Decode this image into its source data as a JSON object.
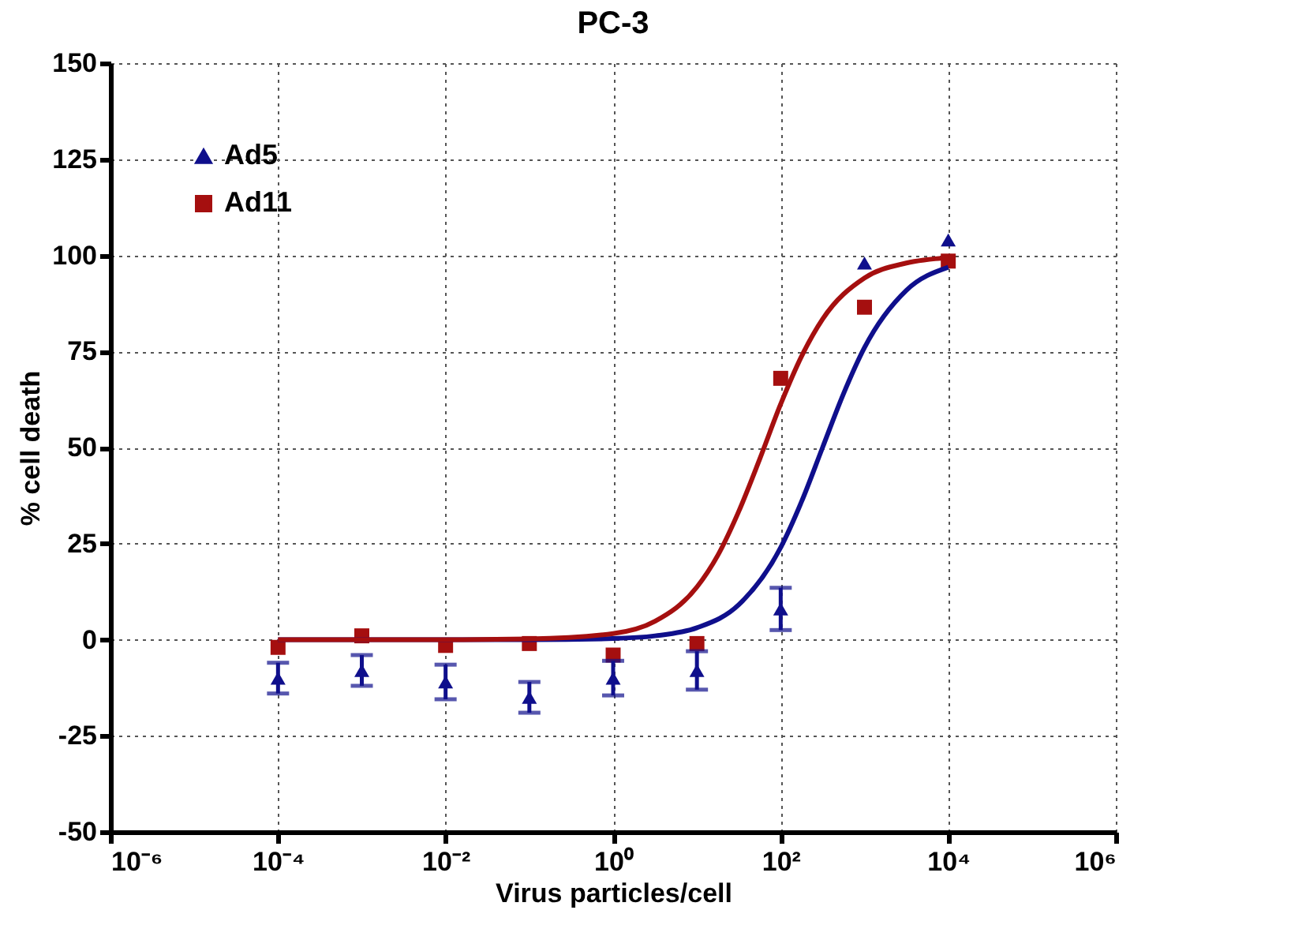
{
  "chart_data": {
    "type": "scatter",
    "title": "PC-3",
    "xlabel": "Virus particles/cell",
    "ylabel": "% cell death",
    "log": "x",
    "grid": true,
    "legend": "top left",
    "xlim": [
      1e-06,
      1000000.0
    ],
    "xticks": [
      {
        "value": 1e-06,
        "label": "10⁻⁶"
      },
      {
        "value": 0.0001,
        "label": "10⁻⁴"
      },
      {
        "value": 0.01,
        "label": "10⁻²"
      },
      {
        "value": 1,
        "label": "10⁰"
      },
      {
        "value": 100,
        "label": "10²"
      },
      {
        "value": 10000,
        "label": "10⁴"
      },
      {
        "value": 1000000.0,
        "label": "10⁶"
      }
    ],
    "ylim": [
      -50,
      150
    ],
    "yticks": [
      -50,
      -25,
      0,
      25,
      50,
      75,
      100,
      125,
      150
    ],
    "series": [
      {
        "name": "Ad5",
        "marker": "triangle",
        "color": "#0f0f8c",
        "x": [
          0.0001,
          0.001,
          0.01,
          0.1,
          1,
          10,
          100,
          1000,
          10000
        ],
        "values": [
          -10,
          -8,
          -11,
          -15,
          -10,
          -8,
          8,
          98,
          104
        ],
        "errors": [
          4,
          4,
          4.5,
          4,
          4.5,
          5,
          5.5,
          null,
          null
        ]
      },
      {
        "name": "Ad11",
        "marker": "square",
        "color": "#a50f0f",
        "x": [
          0.0001,
          0.001,
          0.01,
          0.1,
          1,
          10,
          100,
          1000,
          10000
        ],
        "values": [
          -2,
          1,
          -1.5,
          -1,
          -4,
          -1,
          68,
          86.5,
          98.5
        ]
      },
      {
        "type": "line",
        "marker": "none",
        "color": "#0f0f8c",
        "x": [
          0.0001,
          0.001,
          0.01,
          0.1,
          1,
          3.16,
          10,
          31.6,
          100,
          178,
          316,
          562,
          1000,
          3162,
          10000
        ],
        "values": [
          0,
          0,
          0,
          0,
          0.3,
          1,
          3.1,
          9.1,
          24,
          36,
          50,
          64,
          76,
          90.9,
          96.9
        ]
      },
      {
        "type": "line",
        "marker": "none",
        "color": "#a50f0f",
        "x": [
          0.0001,
          0.001,
          0.01,
          0.1,
          1,
          3.16,
          10,
          17.8,
          31.6,
          56.2,
          100,
          178,
          316,
          1000,
          3162,
          10000
        ],
        "values": [
          0,
          0,
          0,
          0.2,
          1.6,
          4.8,
          13.7,
          22,
          33.4,
          47,
          61.3,
          73.8,
          83.4,
          94.1,
          98,
          99.4
        ]
      }
    ]
  }
}
